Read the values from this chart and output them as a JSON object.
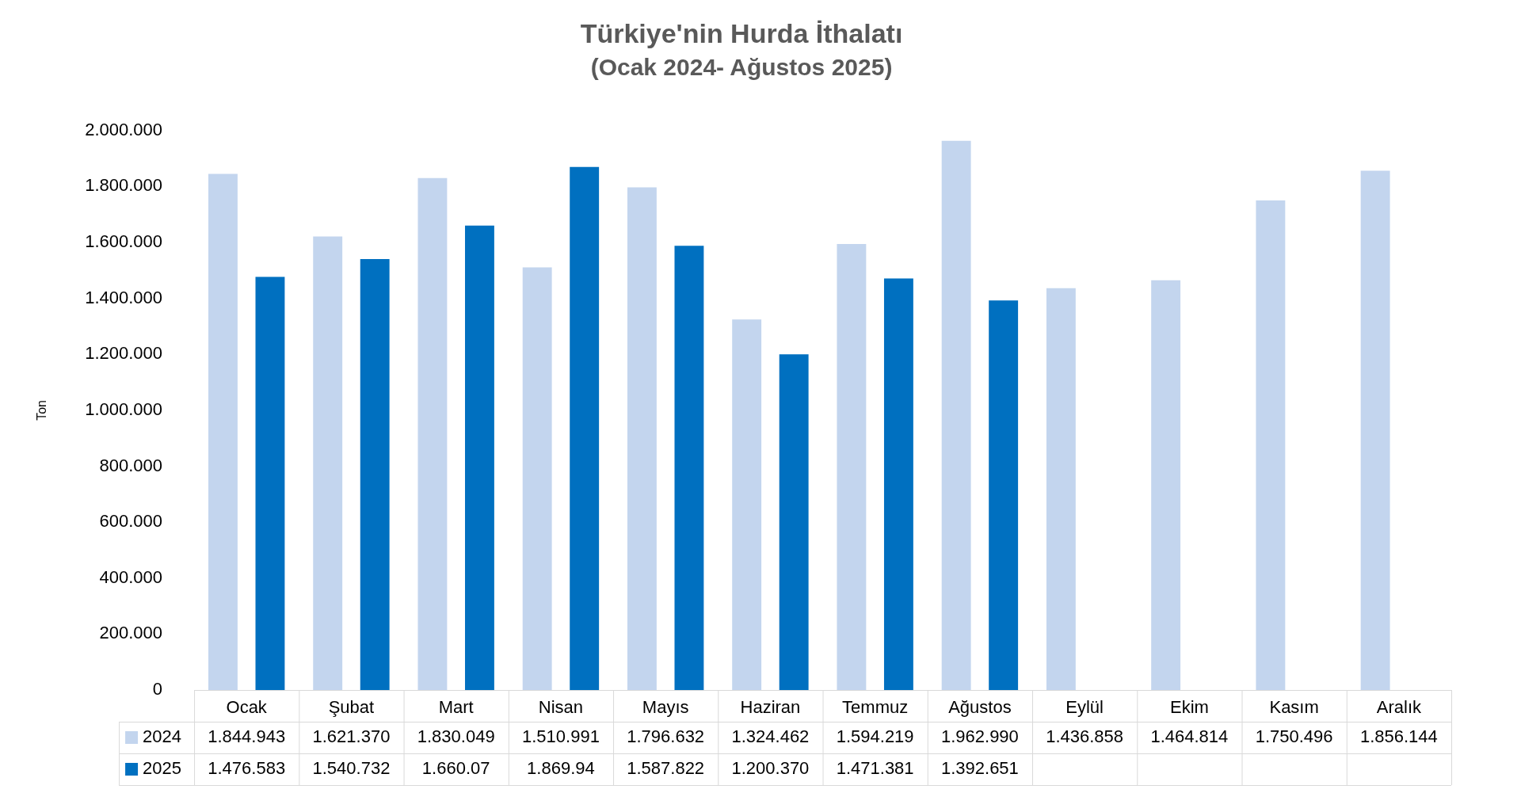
{
  "chart_data": {
    "type": "bar",
    "title": "Türkiye'nin Hurda İthalatı",
    "subtitle": "(Ocak 2024- Ağustos 2025)",
    "ylabel": "Ton",
    "categories": [
      "Ocak",
      "Şubat",
      "Mart",
      "Nisan",
      "Mayıs",
      "Haziran",
      "Temmuz",
      "Ağustos",
      "Eylül",
      "Ekim",
      "Kasım",
      "Aralık"
    ],
    "series": [
      {
        "name": "2024",
        "color": "#c3d5ee",
        "values": [
          1844943,
          1621370,
          1830049,
          1510991,
          1796632,
          1324462,
          1594219,
          1962990,
          1436858,
          1464814,
          1750496,
          1856144
        ],
        "value_labels": [
          "1.844.943",
          "1.621.370",
          "1.830.049",
          "1.510.991",
          "1.796.632",
          "1.324.462",
          "1.594.219",
          "1.962.990",
          "1.436.858",
          "1.464.814",
          "1.750.496",
          "1.856.144"
        ]
      },
      {
        "name": "2025",
        "color": "#0070c0",
        "values": [
          1476583,
          1540732,
          1660070,
          1869940,
          1587822,
          1200370,
          1471381,
          1392651,
          null,
          null,
          null,
          null
        ],
        "value_labels": [
          "1.476.583",
          "1.540.732",
          "1.660.07",
          "1.869.94",
          "1.587.822",
          "1.200.370",
          "1.471.381",
          "1.392.651",
          null,
          null,
          null,
          null
        ]
      }
    ],
    "ylim": [
      0,
      2000000
    ],
    "yticks": [
      {
        "value": 0,
        "label": "0"
      },
      {
        "value": 200000,
        "label": "200.000"
      },
      {
        "value": 400000,
        "label": "400.000"
      },
      {
        "value": 600000,
        "label": "600.000"
      },
      {
        "value": 800000,
        "label": "800.000"
      },
      {
        "value": 1000000,
        "label": "1.000.000"
      },
      {
        "value": 1200000,
        "label": "1.200.000"
      },
      {
        "value": 1400000,
        "label": "1.400.000"
      },
      {
        "value": 1600000,
        "label": "1.600.000"
      },
      {
        "value": 1800000,
        "label": "1.800.000"
      },
      {
        "value": 2000000,
        "label": "2.000.000"
      }
    ],
    "legend": "bottom left"
  }
}
